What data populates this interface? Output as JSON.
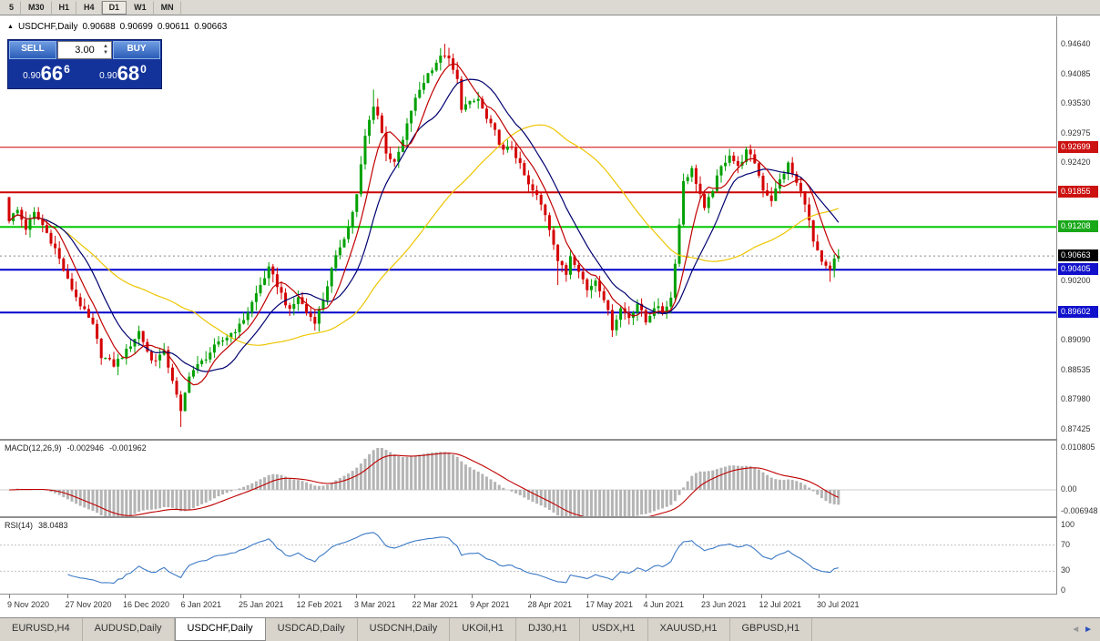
{
  "toolbar": {
    "timeframes": [
      "5",
      "M30",
      "H1",
      "H4",
      "D1",
      "W1",
      "MN"
    ],
    "active": "D1"
  },
  "chart_header": {
    "symbol_period": "USDCHF,Daily",
    "open": "0.90688",
    "high": "0.90699",
    "low": "0.90611",
    "close": "0.90663"
  },
  "trade_panel": {
    "sell_label": "SELL",
    "buy_label": "BUY",
    "volume": "3.00",
    "price_prefix": "0.90",
    "sell_big": "66",
    "sell_sup": "6",
    "buy_big": "68",
    "buy_sup": "0"
  },
  "macd_panel": {
    "name": "MACD(12,26,9)",
    "main_value": "-0.002946",
    "signal_value": "-0.001962",
    "axis": [
      "0.010805",
      "0.00",
      "-0.006948"
    ]
  },
  "rsi_panel": {
    "name": "RSI(14)",
    "value": "38.0483",
    "axis": [
      "100",
      "70",
      "30",
      "0"
    ]
  },
  "tabs": {
    "items": [
      "EURUSD,H4",
      "AUDUSD,Daily",
      "USDCHF,Daily",
      "USDCAD,Daily",
      "USDCNH,Daily",
      "UKOil,H1",
      "DJ30,H1",
      "USDX,H1",
      "XAUUSD,H1",
      "GBPUSD,H1"
    ],
    "active_index": 2,
    "scroll_left": "◄",
    "scroll_right": "►"
  },
  "colors": {
    "up": "#00a000",
    "down": "#d40000",
    "ma_slow": "#edc500",
    "ma_mid": "#000070",
    "ma_fast": "#c00000",
    "macd_hist": "#b4b4b4",
    "macd_signal": "#c00000",
    "rsi_line": "#3d7ac7",
    "line_red": "#cc0000",
    "line_green": "#00c800",
    "line_blue": "#0000cc",
    "badge_red": "#cc1111",
    "badge_green": "#18a818",
    "badge_blue": "#1111cc",
    "badge_black": "#000000"
  },
  "chart_data": {
    "type": "candlestick+indicators",
    "symbol": "USDCHF",
    "period": "Daily",
    "bars": 199,
    "last_close": 0.90663,
    "price_anchors": [
      [
        0,
        0.9135
      ],
      [
        2,
        0.9152
      ],
      [
        4,
        0.9118
      ],
      [
        6,
        0.9146
      ],
      [
        8,
        0.9124
      ],
      [
        11,
        0.908
      ],
      [
        14,
        0.902
      ],
      [
        17,
        0.8975
      ],
      [
        20,
        0.8935
      ],
      [
        22,
        0.888
      ],
      [
        25,
        0.8862
      ],
      [
        28,
        0.8888
      ],
      [
        31,
        0.8925
      ],
      [
        34,
        0.887
      ],
      [
        37,
        0.8885
      ],
      [
        39,
        0.8835
      ],
      [
        41,
        0.8772
      ],
      [
        43,
        0.8845
      ],
      [
        46,
        0.8868
      ],
      [
        49,
        0.8895
      ],
      [
        52,
        0.8915
      ],
      [
        55,
        0.8935
      ],
      [
        57,
        0.8962
      ],
      [
        60,
        0.9012
      ],
      [
        62,
        0.9042
      ],
      [
        64,
        0.9012
      ],
      [
        67,
        0.8962
      ],
      [
        69,
        0.899
      ],
      [
        71,
        0.896
      ],
      [
        73,
        0.8945
      ],
      [
        75,
        0.8985
      ],
      [
        77,
        0.904
      ],
      [
        79,
        0.9085
      ],
      [
        81,
        0.912
      ],
      [
        83,
        0.918
      ],
      [
        85,
        0.929
      ],
      [
        87,
        0.935
      ],
      [
        88,
        0.933
      ],
      [
        90,
        0.9262
      ],
      [
        92,
        0.9238
      ],
      [
        94,
        0.9282
      ],
      [
        96,
        0.934
      ],
      [
        98,
        0.9378
      ],
      [
        100,
        0.9408
      ],
      [
        102,
        0.943
      ],
      [
        104,
        0.9445
      ],
      [
        105,
        0.9432
      ],
      [
        107,
        0.9395
      ],
      [
        108,
        0.9345
      ],
      [
        110,
        0.9352
      ],
      [
        112,
        0.936
      ],
      [
        114,
        0.9322
      ],
      [
        116,
        0.9298
      ],
      [
        118,
        0.9262
      ],
      [
        120,
        0.9272
      ],
      [
        122,
        0.9235
      ],
      [
        124,
        0.9198
      ],
      [
        126,
        0.9178
      ],
      [
        128,
        0.9145
      ],
      [
        130,
        0.9092
      ],
      [
        131,
        0.9058
      ],
      [
        133,
        0.9032
      ],
      [
        134,
        0.9068
      ],
      [
        136,
        0.9042
      ],
      [
        138,
        0.9002
      ],
      [
        140,
        0.9022
      ],
      [
        142,
        0.8988
      ],
      [
        144,
        0.8932
      ],
      [
        146,
        0.8968
      ],
      [
        148,
        0.8952
      ],
      [
        150,
        0.8978
      ],
      [
        152,
        0.8942
      ],
      [
        154,
        0.8972
      ],
      [
        156,
        0.8962
      ],
      [
        158,
        0.8988
      ],
      [
        160,
        0.9125
      ],
      [
        161,
        0.9208
      ],
      [
        163,
        0.9228
      ],
      [
        165,
        0.9182
      ],
      [
        166,
        0.9152
      ],
      [
        168,
        0.9192
      ],
      [
        170,
        0.9232
      ],
      [
        172,
        0.9258
      ],
      [
        174,
        0.9232
      ],
      [
        176,
        0.9262
      ],
      [
        178,
        0.9242
      ],
      [
        180,
        0.9192
      ],
      [
        182,
        0.9172
      ],
      [
        184,
        0.9208
      ],
      [
        186,
        0.9238
      ],
      [
        188,
        0.9202
      ],
      [
        190,
        0.9168
      ],
      [
        192,
        0.9092
      ],
      [
        194,
        0.9052
      ],
      [
        196,
        0.9038
      ],
      [
        197,
        0.9058
      ],
      [
        198,
        0.90663
      ]
    ],
    "wick_overrides": {
      "41": {
        "low": 0.8746
      },
      "87": {
        "high": 0.9378
      },
      "104": {
        "high": 0.9464
      },
      "131": {
        "low": 0.9012
      },
      "144": {
        "low": 0.8921
      },
      "196": {
        "low": 0.9018
      }
    },
    "horizontal_lines": [
      {
        "price": 0.92699,
        "color": "#cc0000",
        "width": 1
      },
      {
        "price": 0.91855,
        "color": "#cc0000",
        "width": 2
      },
      {
        "price": 0.91208,
        "color": "#00c800",
        "width": 2
      },
      {
        "price": 0.90405,
        "color": "#0000cc",
        "width": 2
      },
      {
        "price": 0.89602,
        "color": "#0000cc",
        "width": 2
      }
    ],
    "moving_averages": [
      {
        "period": 45,
        "color": "#edc500"
      },
      {
        "period": 14,
        "color": "#000070"
      },
      {
        "period": 7,
        "color": "#c00000"
      }
    ],
    "macd": {
      "fast": 12,
      "slow": 26,
      "signal": 9,
      "current_main": -0.002946,
      "current_signal": -0.001962,
      "axis_max": 0.010805,
      "axis_min": -0.006948
    },
    "rsi": {
      "period": 14,
      "current": 38.0483,
      "levels": [
        70,
        30
      ],
      "axis_values": [
        100,
        70,
        30,
        0
      ]
    },
    "y_axis_labels": [
      0.9464,
      0.94085,
      0.9353,
      0.92975,
      0.9242,
      0.902,
      0.8909,
      0.88535,
      0.8798,
      0.87425
    ],
    "price_badges": [
      {
        "label": "0.92699",
        "price": 0.92699,
        "color": "#cc1111"
      },
      {
        "label": "0.91855",
        "price": 0.91855,
        "color": "#cc1111"
      },
      {
        "label": "0.91208",
        "price": 0.91208,
        "color": "#18a818"
      },
      {
        "label": "0.90663",
        "price": 0.90663,
        "color": "#000000"
      },
      {
        "label": "0.90405",
        "price": 0.90405,
        "color": "#1111cc"
      },
      {
        "label": "0.89602",
        "price": 0.89602,
        "color": "#1111cc"
      }
    ],
    "x_axis_dates": [
      "9 Nov 2020",
      "27 Nov 2020",
      "16 Dec 2020",
      "6 Jan 2021",
      "25 Jan 2021",
      "12 Feb 2021",
      "3 Mar 2021",
      "22 Mar 2021",
      "9 Apr 2021",
      "28 Apr 2021",
      "17 May 2021",
      "4 Jun 2021",
      "23 Jun 2021",
      "12 Jul 2021",
      "30 Jul 2021"
    ]
  }
}
